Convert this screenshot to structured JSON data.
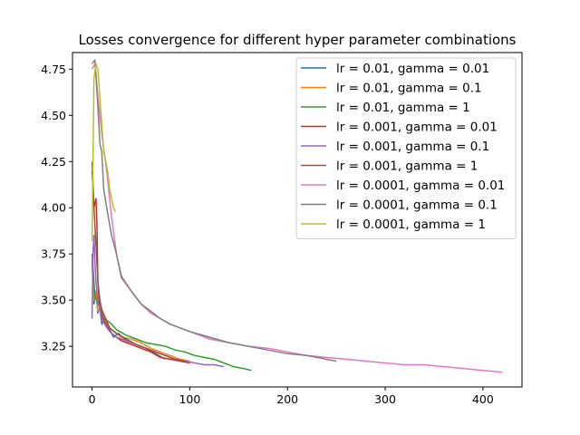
{
  "chart_data": {
    "type": "line",
    "title": "Losses convergence for different hyper parameter combinations",
    "xlabel": "",
    "ylabel": "",
    "xlim": [
      -20,
      440
    ],
    "ylim": [
      3.03,
      4.84
    ],
    "xticks": [
      0,
      100,
      200,
      300,
      400
    ],
    "xtick_labels": [
      "0",
      "100",
      "200",
      "300",
      "400"
    ],
    "yticks": [
      3.25,
      3.5,
      3.75,
      4.0,
      4.25,
      4.5,
      4.75
    ],
    "ytick_labels": [
      "3.25",
      "3.50",
      "3.75",
      "4.00",
      "4.25",
      "4.50",
      "4.75"
    ],
    "grid": false,
    "legend_position": "top-right",
    "series": [
      {
        "name": "lr = 0.01, gamma = 0.01",
        "color": "#1f77b4",
        "x": [
          0,
          2,
          4,
          6,
          8,
          10,
          14,
          18,
          22,
          27,
          35,
          45,
          55,
          65,
          75
        ],
        "y": [
          3.7,
          3.48,
          3.55,
          3.43,
          3.46,
          3.37,
          3.4,
          3.34,
          3.3,
          3.32,
          3.28,
          3.26,
          3.24,
          3.21,
          3.18
        ]
      },
      {
        "name": "lr = 0.01, gamma = 0.1",
        "color": "#ff7f0e",
        "x": [
          0,
          2,
          4,
          6,
          8,
          12,
          16,
          22,
          30,
          40,
          50,
          60,
          70,
          80,
          90,
          100
        ],
        "y": [
          3.72,
          3.5,
          3.55,
          3.44,
          3.45,
          3.38,
          3.36,
          3.33,
          3.3,
          3.29,
          3.27,
          3.24,
          3.22,
          3.2,
          3.18,
          3.17
        ]
      },
      {
        "name": "lr = 0.01, gamma = 1",
        "color": "#2ca02c",
        "x": [
          0,
          3,
          6,
          9,
          12,
          18,
          25,
          35,
          45,
          55,
          65,
          75,
          85,
          95,
          105,
          115,
          125,
          135,
          145,
          155,
          163
        ],
        "y": [
          3.75,
          3.52,
          3.48,
          3.45,
          3.4,
          3.38,
          3.34,
          3.31,
          3.29,
          3.27,
          3.26,
          3.25,
          3.23,
          3.22,
          3.2,
          3.19,
          3.18,
          3.16,
          3.14,
          3.13,
          3.12
        ]
      },
      {
        "name": "lr = 0.001, gamma = 0.01",
        "color": "#d62728",
        "x": [
          0,
          2,
          4,
          5,
          6,
          8,
          10,
          12,
          15,
          20,
          25,
          30,
          40,
          50,
          60,
          70,
          80,
          90,
          100
        ],
        "y": [
          4.2,
          4.0,
          4.05,
          3.9,
          3.6,
          3.45,
          3.42,
          3.4,
          3.36,
          3.32,
          3.3,
          3.28,
          3.26,
          3.24,
          3.22,
          3.19,
          3.18,
          3.17,
          3.16
        ]
      },
      {
        "name": "lr = 0.001, gamma = 0.1",
        "color": "#9467bd",
        "x": [
          0,
          1,
          2,
          3,
          4,
          6,
          8,
          10,
          14,
          18,
          25,
          35,
          45,
          55,
          65,
          75,
          85,
          95,
          105,
          115,
          125,
          135
        ],
        "y": [
          3.4,
          3.75,
          3.85,
          3.7,
          3.6,
          3.5,
          3.45,
          3.4,
          3.36,
          3.33,
          3.3,
          3.28,
          3.26,
          3.24,
          3.22,
          3.2,
          3.18,
          3.17,
          3.16,
          3.15,
          3.15,
          3.14
        ]
      },
      {
        "name": "lr = 0.001, gamma = 1",
        "color": "#8c564b",
        "x": [
          0,
          2,
          4,
          6,
          8,
          10,
          14,
          18,
          25,
          35,
          45,
          55,
          65,
          75,
          85,
          95
        ],
        "y": [
          4.25,
          4.0,
          3.8,
          3.6,
          3.5,
          3.45,
          3.4,
          3.35,
          3.32,
          3.29,
          3.26,
          3.24,
          3.22,
          3.2,
          3.18,
          3.17
        ]
      },
      {
        "name": "lr = 0.0001, gamma = 0.01",
        "color": "#e377c2",
        "x": [
          0,
          3,
          6,
          10,
          15,
          20,
          25,
          30,
          40,
          50,
          60,
          70,
          80,
          90,
          100,
          120,
          140,
          160,
          180,
          200,
          220,
          240,
          260,
          280,
          300,
          320,
          340,
          360,
          380,
          400,
          420
        ],
        "y": [
          4.75,
          4.78,
          4.6,
          4.4,
          4.2,
          3.95,
          3.75,
          3.62,
          3.55,
          3.48,
          3.43,
          3.4,
          3.37,
          3.35,
          3.33,
          3.29,
          3.27,
          3.25,
          3.24,
          3.22,
          3.2,
          3.19,
          3.18,
          3.17,
          3.16,
          3.15,
          3.15,
          3.14,
          3.13,
          3.12,
          3.11
        ]
      },
      {
        "name": "lr = 0.0001, gamma = 0.1",
        "color": "#7f7f7f",
        "x": [
          0,
          3,
          6,
          8,
          10,
          12,
          15,
          20,
          25,
          30,
          40,
          50,
          60,
          70,
          80,
          90,
          100,
          120,
          140,
          160,
          180,
          200,
          220,
          240,
          250
        ],
        "y": [
          4.78,
          4.8,
          4.55,
          4.35,
          4.3,
          4.1,
          4.0,
          3.85,
          3.75,
          3.63,
          3.55,
          3.48,
          3.44,
          3.4,
          3.37,
          3.35,
          3.33,
          3.3,
          3.27,
          3.25,
          3.23,
          3.21,
          3.2,
          3.18,
          3.17
        ]
      },
      {
        "name": "lr = 0.0001, gamma = 1",
        "color": "#bcbd22",
        "x": [
          0,
          2,
          4,
          6,
          8,
          10,
          12,
          14,
          16,
          18,
          20,
          22,
          24
        ],
        "y": [
          3.82,
          4.7,
          4.78,
          4.75,
          4.6,
          4.45,
          4.3,
          4.25,
          4.2,
          4.1,
          4.05,
          4.0,
          3.98
        ]
      }
    ]
  }
}
